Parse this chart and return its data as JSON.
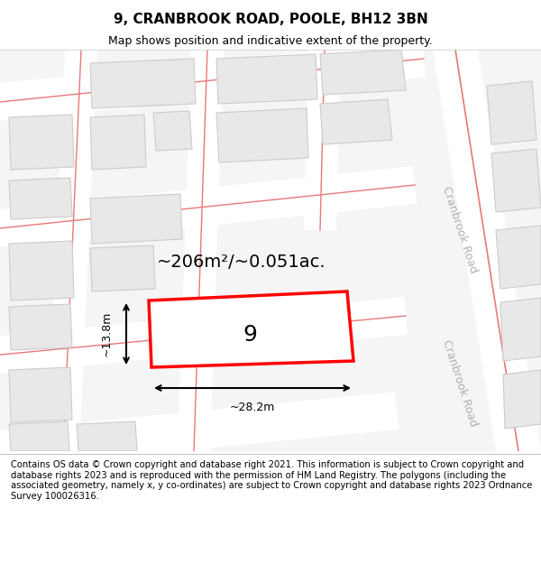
{
  "title_line1": "9, CRANBROOK ROAD, POOLE, BH12 3BN",
  "title_line2": "Map shows position and indicative extent of the property.",
  "footer_text": "Contains OS data © Crown copyright and database right 2021. This information is subject to Crown copyright and database rights 2023 and is reproduced with the permission of HM Land Registry. The polygons (including the associated geometry, namely x, y co-ordinates) are subject to Crown copyright and database rights 2023 Ordnance Survey 100026316.",
  "map_bg": "#f5f5f5",
  "road_color": "#f0b0b0",
  "road_center_color": "#e87878",
  "building_fill": "#e8e8e8",
  "building_edge": "#cccccc",
  "plot_fill": "#ffffff",
  "plot_edge": "#ff0000",
  "area_text": "~206m²/~0.051ac.",
  "plot_number": "9",
  "dim_width": "~28.2m",
  "dim_height": "~13.8m",
  "road_label": "Cranbrook Road",
  "title_fontsize": 11,
  "subtitle_fontsize": 9,
  "footer_fontsize": 7.2
}
